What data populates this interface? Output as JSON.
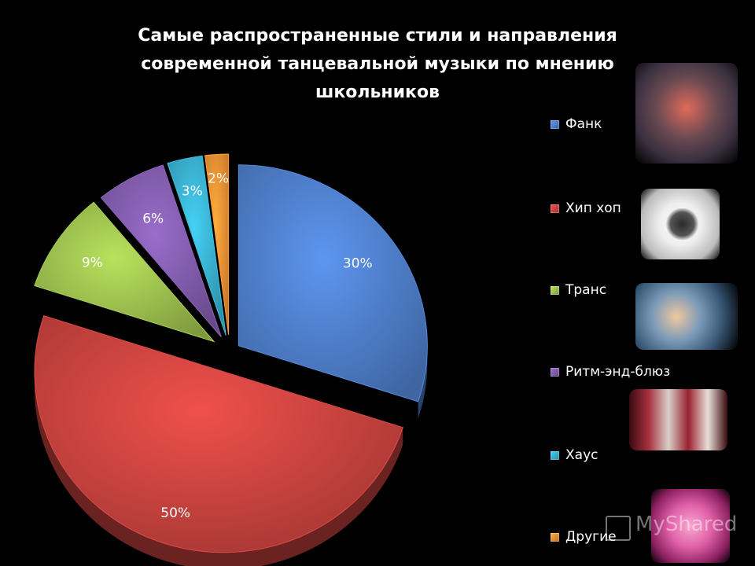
{
  "title_lines": [
    "Самые распространенные стили и направления",
    "современной танцевальной музыки по мнению",
    "школьников"
  ],
  "chart_data": {
    "type": "pie",
    "title": "Самые распространенные стили и направления современной танцевальной музыки по мнению школьников",
    "categories": [
      "Фанк",
      "Хип хоп",
      "Транс",
      "Ритм-энд-блюз",
      "Хаус",
      "Другие"
    ],
    "values": [
      30,
      50,
      9,
      6,
      3,
      2
    ],
    "data_labels": [
      "30%",
      "50%",
      "9%",
      "6%",
      "3%",
      "2%"
    ],
    "colors": [
      "#4a78c0",
      "#c0403c",
      "#94b54a",
      "#7a57a2",
      "#36a7c4",
      "#ec8a31"
    ],
    "legend_position": "right",
    "exploded": true
  },
  "watermark": "MyShared"
}
